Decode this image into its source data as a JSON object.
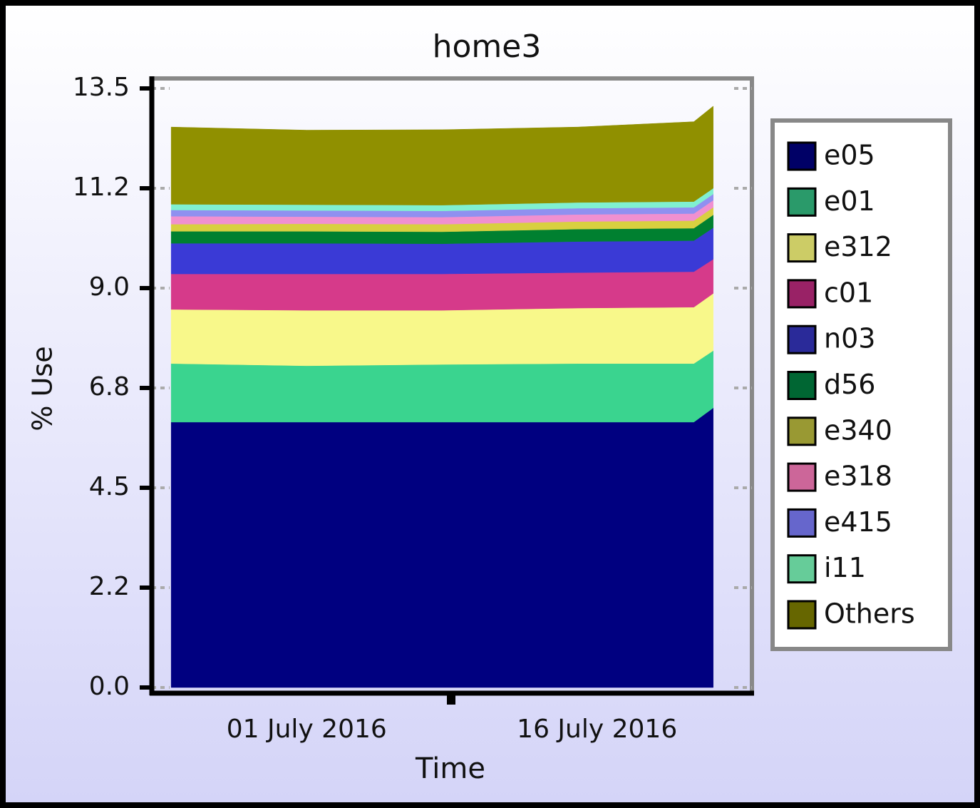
{
  "chart_data": {
    "type": "stacked_area",
    "title": "home3",
    "xlabel": "Time",
    "ylabel": "% Use",
    "x": [
      "2016-06-24",
      "2016-07-01",
      "2016-07-08",
      "2016-07-15",
      "2016-07-21",
      "2016-07-22"
    ],
    "xlim": [
      "2016-06-23",
      "2016-07-24"
    ],
    "xticks": [
      {
        "value": "2016-07-01",
        "label": "01 July 2016"
      },
      {
        "value": "2016-07-16",
        "label": "16 July 2016"
      }
    ],
    "ylim": [
      0,
      13.5
    ],
    "yticks": [
      {
        "value": 0,
        "label": "0.0"
      },
      {
        "value": 2.25,
        "label": "2.2"
      },
      4.5,
      {
        "value": 6.75,
        "label": "6.8"
      },
      {
        "value": 9,
        "label": "9.0"
      },
      {
        "value": 11.25,
        "label": "11.2"
      },
      13.5
    ],
    "grid": true,
    "legend": "right",
    "series": [
      {
        "name": "e05",
        "color": "#000080",
        "legend_color": "#000066",
        "values": [
          5.98,
          5.98,
          5.98,
          5.98,
          5.98,
          6.3
        ]
      },
      {
        "name": "e01",
        "color": "#3ad48f",
        "legend_color": "#2a9a6a",
        "values": [
          1.32,
          1.27,
          1.3,
          1.32,
          1.32,
          1.29
        ]
      },
      {
        "name": "e312",
        "color": "#f8f88a",
        "legend_color": "#cccc66",
        "values": [
          1.22,
          1.25,
          1.22,
          1.25,
          1.27,
          1.29
        ]
      },
      {
        "name": "c01",
        "color": "#d63a8a",
        "legend_color": "#992266",
        "values": [
          0.8,
          0.82,
          0.82,
          0.8,
          0.8,
          0.77
        ]
      },
      {
        "name": "n03",
        "color": "#3a3ad6",
        "legend_color": "#2a2a99",
        "values": [
          0.69,
          0.69,
          0.68,
          0.7,
          0.7,
          0.71
        ]
      },
      {
        "name": "d56",
        "color": "#008030",
        "legend_color": "#006633",
        "values": [
          0.27,
          0.27,
          0.27,
          0.28,
          0.28,
          0.29
        ]
      },
      {
        "name": "e340",
        "color": "#d8d040",
        "legend_color": "#999933",
        "values": [
          0.16,
          0.17,
          0.17,
          0.17,
          0.17,
          0.17
        ]
      },
      {
        "name": "e318",
        "color": "#f090d0",
        "legend_color": "#cc6699",
        "values": [
          0.18,
          0.16,
          0.16,
          0.16,
          0.16,
          0.16
        ]
      },
      {
        "name": "e415",
        "color": "#9090f0",
        "legend_color": "#6666cc",
        "values": [
          0.14,
          0.14,
          0.14,
          0.14,
          0.14,
          0.14
        ]
      },
      {
        "name": "i11",
        "color": "#80f0d0",
        "legend_color": "#66cc99",
        "values": [
          0.13,
          0.13,
          0.13,
          0.13,
          0.13,
          0.13
        ]
      },
      {
        "name": "Others",
        "color": "#909000",
        "legend_color": "#666600",
        "values": [
          1.74,
          1.68,
          1.7,
          1.7,
          1.8,
          1.85
        ]
      }
    ]
  }
}
